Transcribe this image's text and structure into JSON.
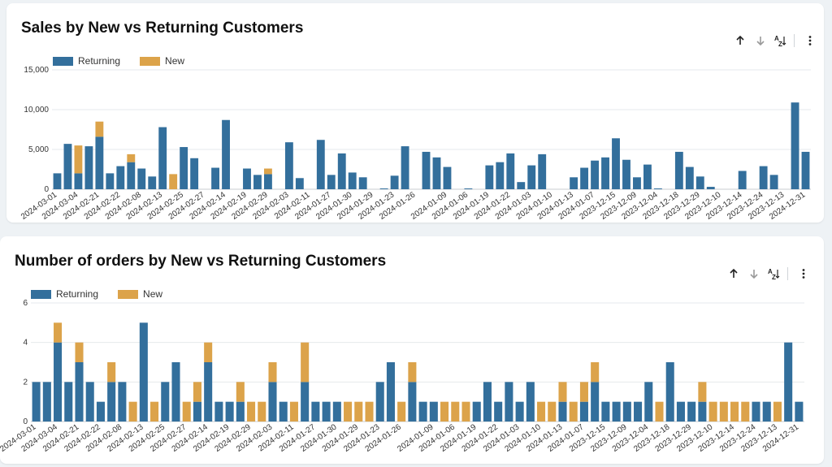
{
  "colors": {
    "returning": "#336f9c",
    "new": "#dca34a",
    "grid": "#e6e9ec",
    "axis": "#c9cdd1"
  },
  "legend": {
    "returning": "Returning",
    "new": "New"
  },
  "toolbar": {
    "sort_asc_icon": "arrow-up-icon",
    "sort_desc_icon": "arrow-down-icon",
    "sort_az_icon": "sort-az-icon",
    "more_icon": "more-vertical-icon"
  },
  "chart_data": [
    {
      "type": "bar",
      "stacked": true,
      "title": "Sales by New vs Returning Customers",
      "ylim": [
        0,
        15000
      ],
      "yticks": [
        "0",
        "5,000",
        "10,000",
        "15,000"
      ],
      "ytick_values": [
        0,
        5000,
        10000,
        15000
      ],
      "xtick_labels": [
        "2024-03-01",
        "2024-03-04",
        "2024-02-21",
        "2024-02-22",
        "2024-02-08",
        "2024-02-13",
        "2024-02-25",
        "2024-02-27",
        "2024-02-14",
        "2024-02-19",
        "2024-02-29",
        "2024-02-03",
        "2024-02-11",
        "2024-01-27",
        "2024-01-30",
        "2024-01-29",
        "2024-01-23",
        "2024-01-26",
        "2024-01-09",
        "2024-01-06",
        "2024-01-19",
        "2024-01-22",
        "2024-01-03",
        "2024-01-10",
        "2024-01-13",
        "2024-01-07",
        "2023-12-15",
        "2023-12-09",
        "2023-12-04",
        "2023-12-18",
        "2023-12-29",
        "2023-12-10",
        "2023-12-14",
        "2023-12-24",
        "2023-12-13",
        "2024-12-31"
      ],
      "series": [
        {
          "name": "Returning",
          "values": [
            2000,
            5700,
            2000,
            5400,
            6600,
            2000,
            2900,
            3400,
            2600,
            1600,
            7800,
            0,
            5300,
            3900,
            0,
            2700,
            8700,
            0,
            2600,
            1800,
            1900,
            0,
            5900,
            1400,
            0,
            6200,
            1800,
            4500,
            2100,
            1500,
            0,
            100,
            1700,
            5400,
            0,
            4700,
            4000,
            2800,
            0,
            100,
            0,
            3000,
            3400,
            4500,
            900,
            3000,
            4400,
            0,
            0,
            1500,
            2700,
            3600,
            4000,
            6400,
            3700,
            1500,
            3100,
            100,
            0,
            4700,
            2800,
            1600,
            300,
            0,
            0,
            2300,
            0,
            2900,
            1800,
            0,
            10900,
            4700
          ]
        },
        {
          "name": "New",
          "values": [
            0,
            0,
            3500,
            0,
            1900,
            0,
            0,
            1000,
            0,
            0,
            0,
            1900,
            0,
            0,
            0,
            0,
            0,
            0,
            0,
            0,
            700,
            0,
            0,
            0,
            0,
            0,
            0,
            0,
            0,
            0,
            0,
            0,
            0,
            0,
            0,
            0,
            0,
            0,
            0,
            0,
            0,
            0,
            0,
            0,
            0,
            0,
            0,
            0,
            0,
            0,
            0,
            0,
            0,
            0,
            0,
            0,
            0,
            0,
            0,
            0,
            0,
            0,
            0,
            0,
            0,
            0,
            0,
            0,
            0,
            0,
            0,
            0
          ]
        }
      ]
    },
    {
      "type": "bar",
      "stacked": true,
      "title": "Number of orders by New vs Returning Customers",
      "ylim": [
        0,
        6
      ],
      "yticks": [
        "0",
        "2",
        "4",
        "6"
      ],
      "ytick_values": [
        0,
        2,
        4,
        6
      ],
      "xtick_labels": [
        "2024-03-01",
        "2024-03-04",
        "2024-02-21",
        "2024-02-22",
        "2024-02-08",
        "2024-02-13",
        "2024-02-25",
        "2024-02-27",
        "2024-02-14",
        "2024-02-19",
        "2024-02-29",
        "2024-02-03",
        "2024-02-11",
        "2024-01-27",
        "2024-01-30",
        "2024-01-29",
        "2024-01-23",
        "2024-01-26",
        "2024-01-09",
        "2024-01-06",
        "2024-01-19",
        "2024-01-22",
        "2024-01-03",
        "2024-01-10",
        "2024-01-13",
        "2024-01-07",
        "2023-12-15",
        "2023-12-09",
        "2023-12-04",
        "2023-12-18",
        "2023-12-29",
        "2023-12-10",
        "2023-12-14",
        "2023-12-24",
        "2023-12-13",
        "2024-12-31"
      ],
      "series": [
        {
          "name": "Returning",
          "values": [
            2,
            2,
            4,
            2,
            3,
            2,
            1,
            2,
            2,
            0,
            5,
            0,
            2,
            3,
            0,
            1,
            3,
            1,
            1,
            1,
            0,
            0,
            2,
            1,
            0,
            2,
            1,
            1,
            1,
            0,
            0,
            0,
            2,
            3,
            0,
            2,
            1,
            1,
            0,
            0,
            0,
            1,
            2,
            1,
            2,
            1,
            2,
            0,
            0,
            1,
            0,
            1,
            2,
            1,
            1,
            1,
            1,
            2,
            0,
            3,
            1,
            1,
            1,
            0,
            0,
            0,
            0,
            1,
            1,
            0,
            4,
            1
          ]
        },
        {
          "name": "New",
          "values": [
            0,
            0,
            1,
            0,
            1,
            0,
            0,
            1,
            0,
            1,
            0,
            1,
            0,
            0,
            1,
            1,
            1,
            0,
            0,
            1,
            1,
            1,
            1,
            0,
            1,
            2,
            0,
            0,
            0,
            1,
            1,
            1,
            0,
            0,
            1,
            1,
            0,
            0,
            1,
            1,
            1,
            0,
            0,
            0,
            0,
            0,
            0,
            1,
            1,
            1,
            1,
            1,
            1,
            0,
            0,
            0,
            0,
            0,
            1,
            0,
            0,
            0,
            1,
            1,
            1,
            1,
            1,
            0,
            0,
            1,
            0,
            0
          ]
        }
      ]
    }
  ]
}
